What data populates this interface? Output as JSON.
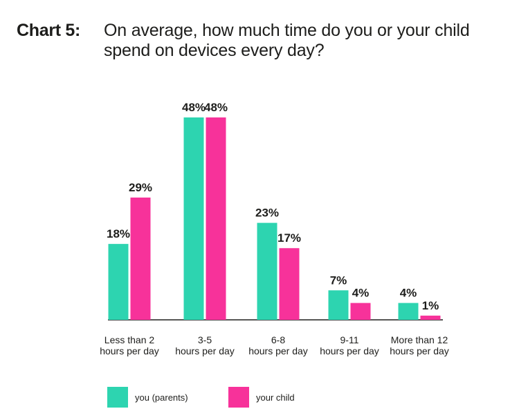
{
  "header": {
    "label": "Chart 5:",
    "title": "On average, how much time do you or your child spend on devices every day?"
  },
  "colors": {
    "parents": "#2dd4b0",
    "child": "#f7329a",
    "axis": "#1d1d1b"
  },
  "chart_data": {
    "type": "bar",
    "title": "On average, how much time do you or your child spend on devices every day?",
    "categories": [
      [
        "Less than 2",
        "hours per day"
      ],
      [
        "3-5",
        "hours per day"
      ],
      [
        "6-8",
        "hours per day"
      ],
      [
        "9-11",
        "hours per day"
      ],
      [
        "More than 12",
        "hours per day"
      ]
    ],
    "series": [
      {
        "name": "you (parents)",
        "values": [
          18,
          48,
          23,
          7,
          4
        ],
        "labels": [
          "18%",
          "48%",
          "23%",
          "7%",
          "4%"
        ]
      },
      {
        "name": "your child",
        "values": [
          29,
          48,
          17,
          4,
          1
        ],
        "labels": [
          "29%",
          "48%",
          "17%",
          "4%",
          "1%"
        ]
      }
    ],
    "unit": "%",
    "ylim": [
      0,
      48
    ],
    "grid": false,
    "legend_position": "bottom-left"
  }
}
